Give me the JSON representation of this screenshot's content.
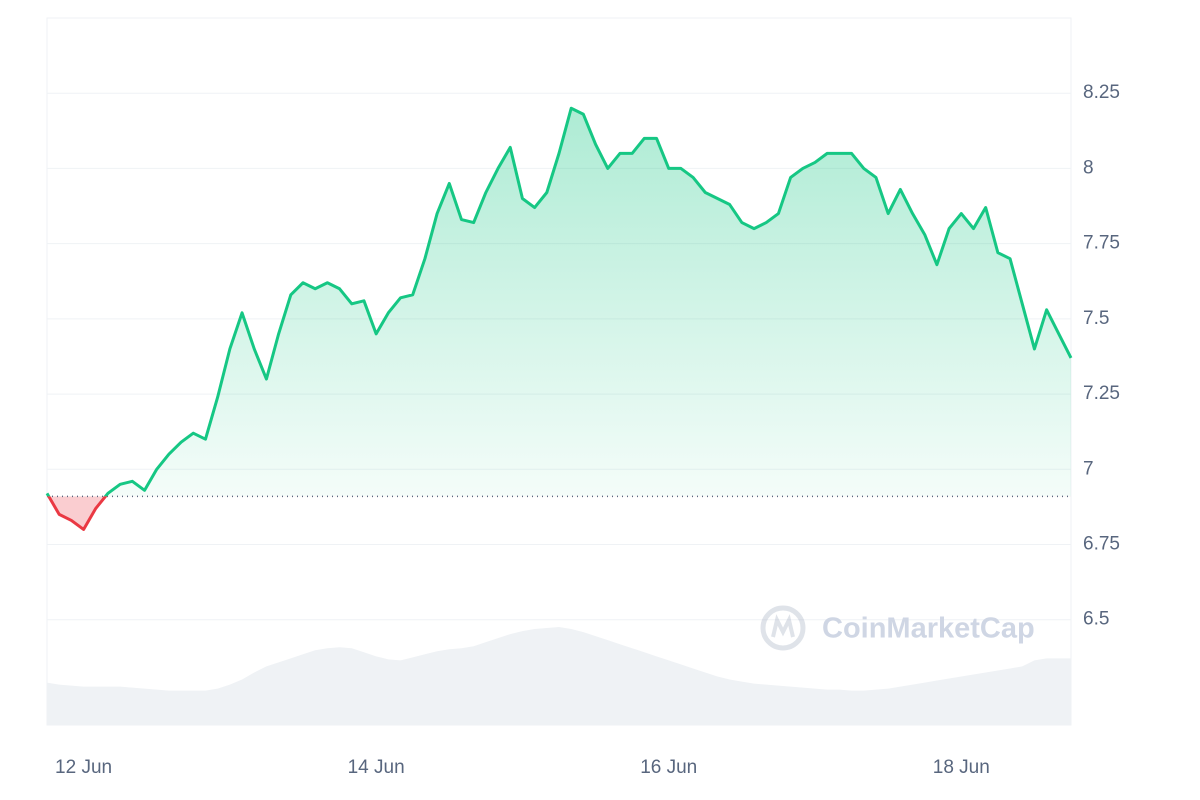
{
  "chart_data": {
    "type": "line",
    "categories": [
      null,
      null,
      null,
      "12 Jun",
      null,
      null,
      null,
      null,
      null,
      null,
      null,
      null,
      null,
      null,
      null,
      null,
      null,
      null,
      null,
      null,
      null,
      null,
      null,
      null,
      null,
      null,
      null,
      "14 Jun",
      null,
      null,
      null,
      null,
      null,
      null,
      null,
      null,
      null,
      null,
      null,
      null,
      null,
      null,
      null,
      null,
      null,
      null,
      null,
      null,
      null,
      null,
      null,
      "16 Jun",
      null,
      null,
      null,
      null,
      null,
      null,
      null,
      null,
      null,
      null,
      null,
      null,
      null,
      null,
      null,
      null,
      null,
      null,
      null,
      null,
      null,
      null,
      null,
      "18 Jun",
      null,
      null,
      null,
      null,
      null,
      null,
      null,
      null,
      null
    ],
    "series": [
      {
        "color": "#16c784",
        "down_color": "#ea3943",
        "values": [
          6.92,
          6.85,
          6.83,
          6.8,
          6.87,
          6.92,
          6.95,
          6.96,
          6.93,
          7.0,
          7.05,
          7.09,
          7.12,
          7.1,
          7.24,
          7.4,
          7.52,
          7.4,
          7.3,
          7.45,
          7.58,
          7.62,
          7.6,
          7.62,
          7.6,
          7.55,
          7.56,
          7.45,
          7.52,
          7.57,
          7.58,
          7.7,
          7.85,
          7.95,
          7.83,
          7.82,
          7.92,
          8.0,
          8.07,
          7.9,
          7.87,
          7.92,
          8.05,
          8.2,
          8.18,
          8.08,
          8.0,
          8.05,
          8.05,
          8.1,
          8.1,
          8.0,
          8.0,
          7.97,
          7.92,
          7.9,
          7.88,
          7.82,
          7.8,
          7.82,
          7.85,
          7.97,
          8.0,
          8.02,
          8.05,
          8.05,
          8.05,
          8.0,
          7.97,
          7.85,
          7.93,
          7.85,
          7.78,
          7.68,
          7.8,
          7.85,
          7.8,
          7.87,
          7.72,
          7.7,
          7.55,
          7.4,
          7.53,
          7.45,
          7.37
        ]
      },
      {
        "color": "#eff2f5",
        "axis": "y2",
        "values": [
          42,
          40,
          39,
          38,
          38,
          38,
          38,
          37,
          36,
          35,
          34,
          34,
          34,
          34,
          36,
          40,
          45,
          52,
          58,
          62,
          66,
          70,
          74,
          76,
          77,
          76,
          72,
          68,
          65,
          64,
          67,
          70,
          73,
          75,
          76,
          78,
          82,
          86,
          90,
          93,
          95,
          96,
          97,
          95,
          92,
          88,
          84,
          80,
          76,
          72,
          68,
          64,
          60,
          56,
          52,
          48,
          45,
          43,
          41,
          40,
          39,
          38,
          37,
          36,
          35,
          35,
          34,
          34,
          35,
          36,
          38,
          40,
          42,
          44,
          46,
          48,
          50,
          52,
          54,
          56,
          58,
          64,
          66,
          66,
          66
        ]
      }
    ],
    "baseline": 6.91,
    "ylim": [
      6.15,
      8.5
    ],
    "yticks": [
      6.5,
      6.75,
      7,
      7.25,
      7.5,
      7.75,
      8,
      8.25
    ],
    "y2lim": [
      0,
      700
    ],
    "grid": true,
    "watermark": "CoinMarketCap"
  }
}
